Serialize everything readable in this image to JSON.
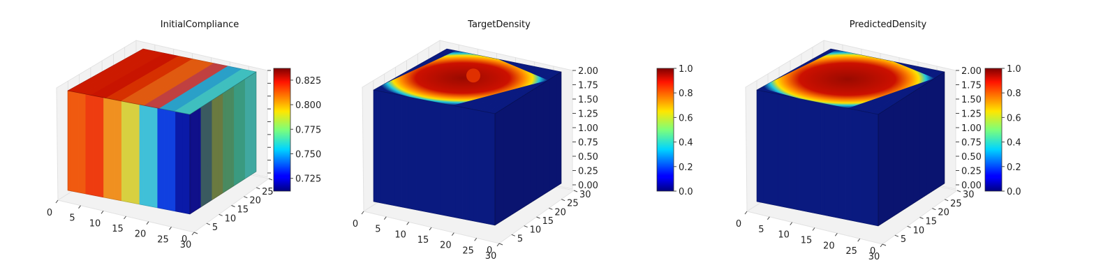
{
  "chart_data": [
    {
      "type": "heatmap",
      "title": "InitialCompliance",
      "x_ticks": [
        "0",
        "5",
        "10",
        "15",
        "20",
        "25",
        "30"
      ],
      "y_ticks": [
        "0",
        "5",
        "10",
        "15",
        "20",
        "25",
        "30"
      ],
      "z_ticks": [],
      "colorbar": {
        "ticks": [
          "0.725",
          "0.750",
          "0.775",
          "0.800",
          "0.825"
        ],
        "range": [
          0.712,
          0.837
        ],
        "colormap": "jet"
      },
      "top_colors": [
        "#cc1a00",
        "#c81400",
        "#d63000",
        "#e05a10",
        "#c04040",
        "#2aa0c8",
        "#3fbfbf"
      ],
      "front_colors": [
        "#f05a10",
        "#ee3c10",
        "#f09020",
        "#d8d040",
        "#40c0d8",
        "#1040e0",
        "#0a1aa8"
      ],
      "right_colors": [
        "#10108a",
        "#3a5a60",
        "#6a7a40",
        "#4a8a60",
        "#3a9a80",
        "#40a8a0"
      ]
    },
    {
      "type": "heatmap",
      "title": "TargetDensity",
      "x_ticks": [
        "0",
        "5",
        "10",
        "15",
        "20",
        "25",
        "30"
      ],
      "y_ticks": [
        "0",
        "5",
        "10",
        "15",
        "20",
        "25",
        "30"
      ],
      "z_ticks": [
        "0.00",
        "0.25",
        "0.50",
        "0.75",
        "1.00",
        "1.25",
        "1.50",
        "1.75",
        "2.00"
      ],
      "colorbar": {
        "ticks": [
          "0.0",
          "0.2",
          "0.4",
          "0.6",
          "0.8",
          "1.0"
        ],
        "range": [
          0,
          1
        ],
        "colormap": "jet"
      },
      "top_colors": [
        "#0a1a80"
      ],
      "front_colors": [
        "#0a1a80"
      ],
      "right_colors": [
        "#0a1470"
      ]
    },
    {
      "type": "heatmap",
      "title": "PredictedDensity",
      "x_ticks": [
        "0",
        "5",
        "10",
        "15",
        "20",
        "25",
        "30"
      ],
      "y_ticks": [
        "0",
        "5",
        "10",
        "15",
        "20",
        "25",
        "30"
      ],
      "z_ticks": [
        "0.00",
        "0.25",
        "0.50",
        "0.75",
        "1.00",
        "1.25",
        "1.50",
        "1.75",
        "2.00"
      ],
      "colorbar": {
        "ticks": [
          "0.0",
          "0.2",
          "0.4",
          "0.6",
          "0.8",
          "1.0"
        ],
        "range": [
          0,
          1
        ],
        "colormap": "jet"
      },
      "top_colors": [
        "#0a1a80"
      ],
      "front_colors": [
        "#0a1a80"
      ],
      "right_colors": [
        "#0a1470"
      ]
    }
  ]
}
